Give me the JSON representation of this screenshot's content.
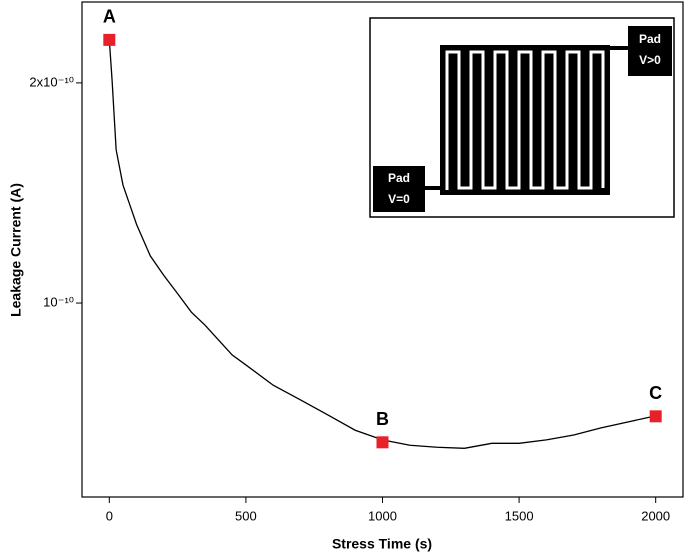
{
  "chart_data": {
    "type": "line",
    "xlabel": "Stress Time (s)",
    "ylabel": "Leakage Current (A)",
    "x": [
      0,
      10,
      25,
      50,
      100,
      150,
      200,
      250,
      300,
      350,
      400,
      450,
      500,
      600,
      700,
      800,
      900,
      1000,
      1100,
      1200,
      1300,
      1400,
      1500,
      1600,
      1700,
      1800,
      1900,
      2000
    ],
    "series": [
      {
        "color": "#000000",
        "values": [
          2.29e-10,
          2.02e-10,
          1.62e-10,
          1.45e-10,
          1.28e-10,
          1.16e-10,
          1.09e-10,
          1.03e-10,
          9.72e-11,
          9.33e-11,
          8.9e-11,
          8.49e-11,
          8.23e-11,
          7.72e-11,
          7.37e-11,
          7.03e-11,
          6.7e-11,
          6.5e-11,
          6.39e-11,
          6.35e-11,
          6.33e-11,
          6.43e-11,
          6.43e-11,
          6.5e-11,
          6.6e-11,
          6.75e-11,
          6.88e-11,
          7.01e-11
        ]
      }
    ],
    "points": {
      "x": [
        0,
        1000,
        2000
      ],
      "values": [
        2.29e-10,
        6.45e-11,
        7e-11
      ],
      "labels": [
        "A",
        "B",
        "C"
      ],
      "color": "#e8202a"
    },
    "xlim": [
      -100,
      2100
    ],
    "xticks": [
      0,
      500,
      1000,
      1500,
      2000
    ],
    "ylim": [
      5.43e-11,
      2.58e-10
    ],
    "ylog": true,
    "yticks": [
      {
        "value": 1e-10,
        "label": "10⁻¹⁰"
      },
      {
        "value": 2e-10,
        "label": "2x10⁻¹⁰"
      }
    ],
    "inset": {
      "pads": [
        {
          "name": "Pad",
          "voltage": "V>0"
        },
        {
          "name": "Pad",
          "voltage": "V=0"
        }
      ]
    }
  }
}
